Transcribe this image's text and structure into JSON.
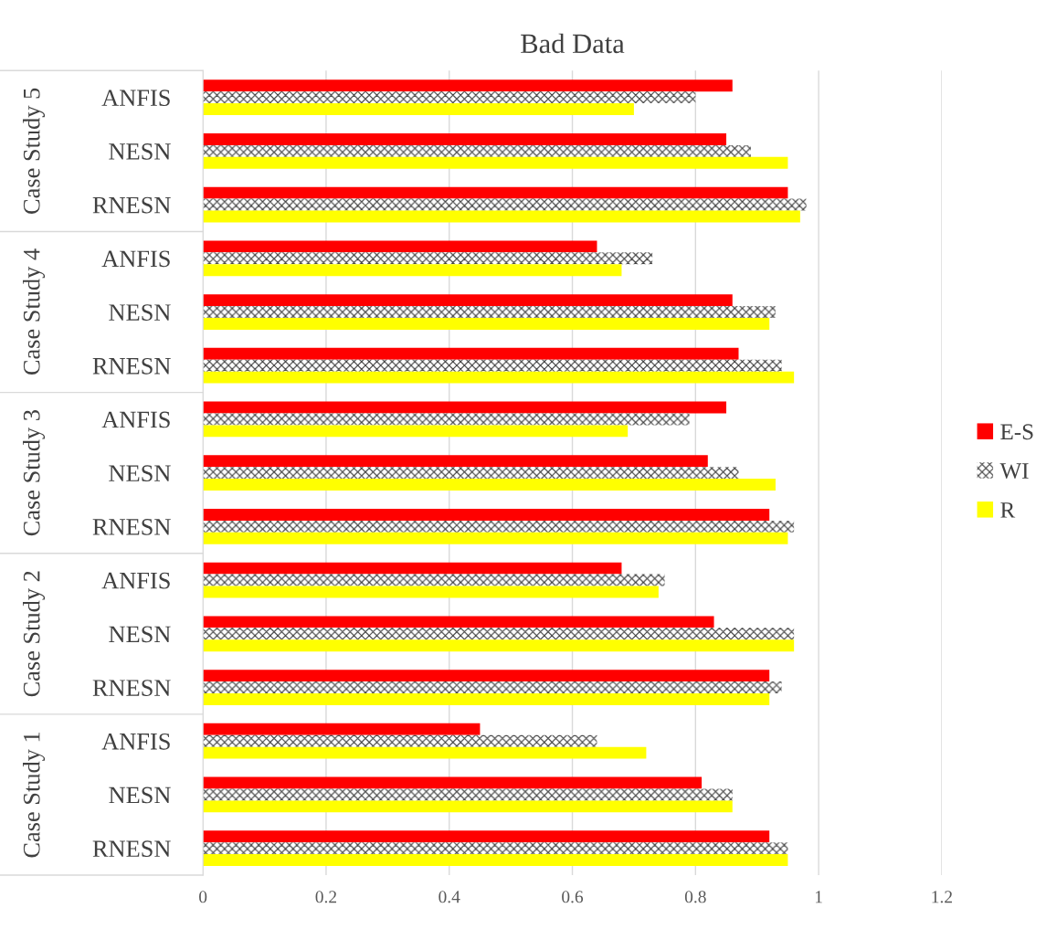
{
  "chart_data": {
    "type": "bar",
    "orientation": "horizontal",
    "title": "Bad Data",
    "categories": [
      "ANFIS",
      "NESN",
      "RNESN",
      "ANFIS",
      "NESN",
      "RNESN",
      "ANFIS",
      "NESN",
      "RNESN",
      "ANFIS",
      "NESN",
      "RNESN",
      "ANFIS",
      "NESN",
      "RNESN"
    ],
    "annotations": [
      "Case Study 5",
      "Case Study 4",
      "Case Study 3",
      "Case Study 2",
      "Case Study 1"
    ],
    "series": [
      {
        "name": "E-S",
        "color": "#ff0000",
        "values": [
          0.86,
          0.85,
          0.95,
          0.64,
          0.86,
          0.87,
          0.85,
          0.82,
          0.92,
          0.68,
          0.83,
          0.92,
          0.45,
          0.81,
          0.92
        ]
      },
      {
        "name": "WI",
        "color": "#404040",
        "values": [
          0.8,
          0.89,
          0.98,
          0.73,
          0.93,
          0.94,
          0.79,
          0.87,
          0.96,
          0.75,
          0.96,
          0.94,
          0.64,
          0.86,
          0.95
        ]
      },
      {
        "name": "R",
        "color": "#ffff00",
        "values": [
          0.7,
          0.95,
          0.97,
          0.68,
          0.92,
          0.96,
          0.69,
          0.93,
          0.95,
          0.74,
          0.96,
          0.92,
          0.72,
          0.86,
          0.95
        ]
      }
    ],
    "xlim": [
      0,
      1.2
    ],
    "xticks": [
      0,
      0.2,
      0.4,
      0.6,
      0.8,
      1,
      1.2
    ],
    "grid": "x",
    "legend": "right"
  }
}
